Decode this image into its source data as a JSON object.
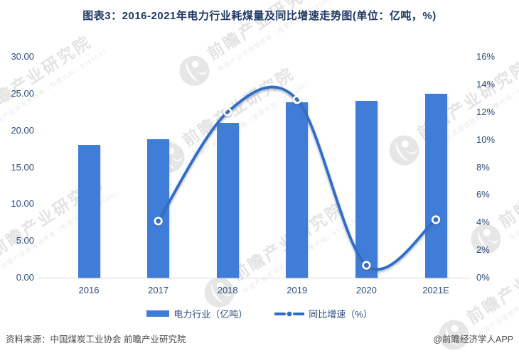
{
  "title": "图表3：2016-2021年电力行业耗煤量及同比增速走势图(单位：亿吨，%)",
  "legend": [
    {
      "label": "电力行业（亿吨）"
    },
    {
      "label": "同比增速（%）"
    }
  ],
  "footer": {
    "source": "资料来源：中国煤炭工业协会 前瞻产业研究院",
    "credit": "@前瞻经济学人APP"
  },
  "watermark": {
    "brand_text": "前瞻产业研究院",
    "sub_text": "中国产业咨询领导者（股票代码：839599）"
  },
  "colors": {
    "bar": "#3F7DD8",
    "line": "#2F6EC8",
    "axis_text": "#2E4D7B",
    "title_text": "#1F3864",
    "baseline": "#D9D9D9",
    "footer_text": "#4A4A4A",
    "watermark": "#C9C9C9"
  },
  "chart_data": {
    "type": "bar",
    "subtype": "bar+line dual axis",
    "title": "图表3：2016-2021年电力行业耗煤量及同比增速走势图(单位：亿吨，%)",
    "categories": [
      "2016",
      "2017",
      "2018",
      "2019",
      "2020",
      "2021E"
    ],
    "series": [
      {
        "name": "电力行业（亿吨）",
        "type": "bar",
        "axis": "left",
        "values": [
          18.0,
          18.8,
          21.0,
          23.8,
          24.0,
          25.0
        ]
      },
      {
        "name": "同比增速（%）",
        "type": "line",
        "axis": "right",
        "smooth": true,
        "values": [
          null,
          4.1,
          12.0,
          12.9,
          0.9,
          4.2
        ]
      }
    ],
    "left_axis": {
      "min": 0,
      "max": 30,
      "ticks": [
        "0.00",
        "5.00",
        "10.00",
        "15.00",
        "20.00",
        "25.00",
        "30.00"
      ]
    },
    "right_axis": {
      "min": 0,
      "max": 16,
      "ticks": [
        "0%",
        "2%",
        "4%",
        "6%",
        "8%",
        "10%",
        "12%",
        "14%",
        "16%"
      ]
    },
    "grid": false,
    "legend_position": "bottom"
  }
}
